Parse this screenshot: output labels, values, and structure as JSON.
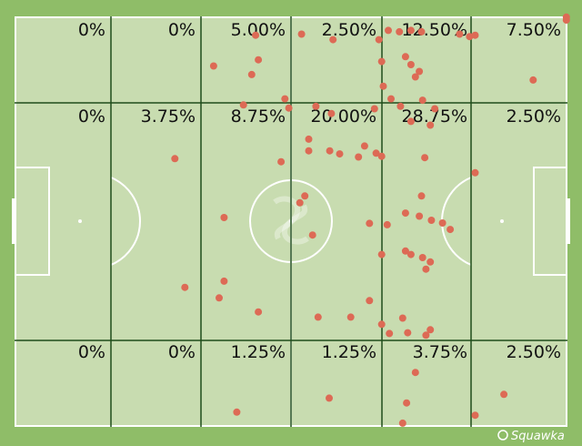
{
  "grid_percentages": [
    [
      "0%",
      "0%",
      "5.00%",
      "2.50%",
      "12.50%",
      "7.50%"
    ],
    [
      "0%",
      "3.75%",
      "8.75%",
      "20.00%",
      "28.75%",
      "2.50%"
    ],
    [
      "0%",
      "0%",
      "1.25%",
      "1.25%",
      "3.75%",
      "2.50%"
    ]
  ],
  "brand": {
    "name": "Squawka",
    "icon": "squawka-logo-icon"
  },
  "colors": {
    "background": "#8fbd68",
    "pitch": "#c8dcb0",
    "zone_lines": "#1f4d1a",
    "pitch_lines": "#ffffff",
    "dots": "#dd6a55"
  },
  "chart_data": {
    "type": "scatter",
    "description_units": "pitch coordinates, x 0-100 left to right, y 0-100 top to bottom",
    "points": [
      [
        43.6,
        5.5
      ],
      [
        51.9,
        5.2
      ],
      [
        57.6,
        6.8
      ],
      [
        65.9,
        6.8
      ],
      [
        67.6,
        4.1
      ],
      [
        69.6,
        4.5
      ],
      [
        71.7,
        4.1
      ],
      [
        73.6,
        4.5
      ],
      [
        80.5,
        5.2
      ],
      [
        82.3,
        5.9
      ],
      [
        83.3,
        5.5
      ],
      [
        99.8,
        1.1
      ],
      [
        99.8,
        0.2
      ],
      [
        36.0,
        14.5
      ],
      [
        44.1,
        12.7
      ],
      [
        42.9,
        17.0
      ],
      [
        66.4,
        13.2
      ],
      [
        70.7,
        11.8
      ],
      [
        71.7,
        14.1
      ],
      [
        73.2,
        16.1
      ],
      [
        72.5,
        17.7
      ],
      [
        66.7,
        20.4
      ],
      [
        93.8,
        18.6
      ],
      [
        41.4,
        25.9
      ],
      [
        48.9,
        24.1
      ],
      [
        49.6,
        26.8
      ],
      [
        54.5,
        26.3
      ],
      [
        57.3,
        28.4
      ],
      [
        65.1,
        27.0
      ],
      [
        68.1,
        24.1
      ],
      [
        69.8,
        26.3
      ],
      [
        73.8,
        24.5
      ],
      [
        71.7,
        30.7
      ],
      [
        75.2,
        31.8
      ],
      [
        76.0,
        27.0
      ],
      [
        29.0,
        41.6
      ],
      [
        48.2,
        42.5
      ],
      [
        53.2,
        35.9
      ],
      [
        53.2,
        39.3
      ],
      [
        57.0,
        39.3
      ],
      [
        58.8,
        40.2
      ],
      [
        62.2,
        41.1
      ],
      [
        63.3,
        37.9
      ],
      [
        65.4,
        40.0
      ],
      [
        66.4,
        40.9
      ],
      [
        74.2,
        41.3
      ],
      [
        83.3,
        45.7
      ],
      [
        37.9,
        58.8
      ],
      [
        51.6,
        54.5
      ],
      [
        52.5,
        52.5
      ],
      [
        53.9,
        63.9
      ],
      [
        64.2,
        60.5
      ],
      [
        67.4,
        60.9
      ],
      [
        70.7,
        57.5
      ],
      [
        73.2,
        58.4
      ],
      [
        73.6,
        52.5
      ],
      [
        75.4,
        59.6
      ],
      [
        77.4,
        60.4
      ],
      [
        78.8,
        62.3
      ],
      [
        66.4,
        69.6
      ],
      [
        70.7,
        68.6
      ],
      [
        71.7,
        69.6
      ],
      [
        73.8,
        70.5
      ],
      [
        74.4,
        73.9
      ],
      [
        75.2,
        71.8
      ],
      [
        30.8,
        79.2
      ],
      [
        37.9,
        77.4
      ],
      [
        37.0,
        82.3
      ],
      [
        44.1,
        86.4
      ],
      [
        64.2,
        83.1
      ],
      [
        54.9,
        87.9
      ],
      [
        60.8,
        87.9
      ],
      [
        66.4,
        90.0
      ],
      [
        67.8,
        92.7
      ],
      [
        70.2,
        88.2
      ],
      [
        71.1,
        92.5
      ],
      [
        74.4,
        93.2
      ],
      [
        75.2,
        91.6
      ],
      [
        72.5,
        104.1
      ],
      [
        40.2,
        115.7
      ],
      [
        56.9,
        111.6
      ],
      [
        70.9,
        113.0
      ],
      [
        70.2,
        118.9
      ],
      [
        83.3,
        116.6
      ],
      [
        88.5,
        110.5
      ]
    ]
  }
}
